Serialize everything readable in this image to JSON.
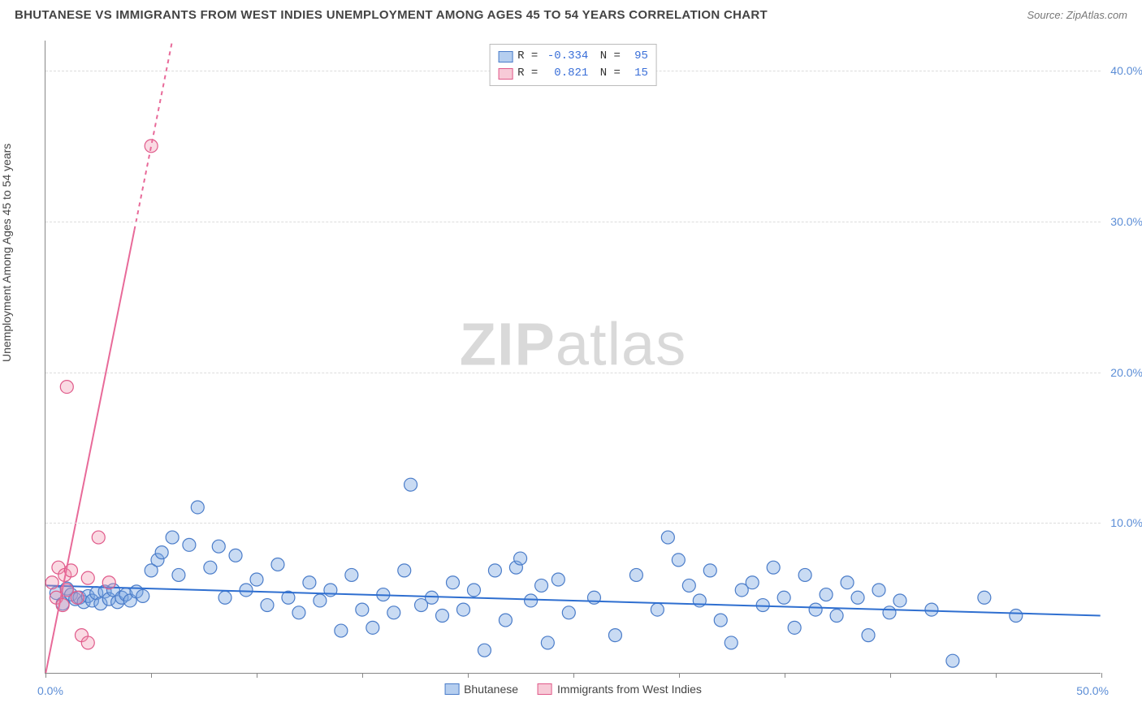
{
  "title": "BHUTANESE VS IMMIGRANTS FROM WEST INDIES UNEMPLOYMENT AMONG AGES 45 TO 54 YEARS CORRELATION CHART",
  "source": "Source: ZipAtlas.com",
  "ylabel": "Unemployment Among Ages 45 to 54 years",
  "watermark_bold": "ZIP",
  "watermark_light": "atlas",
  "xlim": [
    0,
    50
  ],
  "ylim": [
    0,
    42
  ],
  "x_tick_positions": [
    0,
    5,
    10,
    15,
    20,
    25,
    30,
    35,
    40,
    45,
    50
  ],
  "y_gridlines": [
    10,
    20,
    30,
    40
  ],
  "y_tick_labels": [
    "10.0%",
    "20.0%",
    "30.0%",
    "40.0%"
  ],
  "x_origin_label": "0.0%",
  "x_max_label": "50.0%",
  "colors": {
    "blue_fill": "rgba(120,165,225,0.40)",
    "blue_stroke": "#4a7cc9",
    "pink_fill": "rgba(240,150,175,0.35)",
    "pink_stroke": "#e05a8a",
    "blue_line": "#2f6fd0",
    "pink_line": "#e86a99",
    "grid": "#dcdcdc",
    "axis": "#888888",
    "tick_text": "#5b8dd6"
  },
  "marker_radius": 8,
  "line_width": 2,
  "series": [
    {
      "name": "Bhutanese",
      "color_key": "blue",
      "R": "-0.334",
      "N": "95",
      "trend": {
        "x1": 0,
        "y1": 5.8,
        "x2": 50,
        "y2": 3.8
      },
      "points": [
        [
          0.5,
          5.3
        ],
        [
          0.8,
          4.6
        ],
        [
          1.0,
          5.6
        ],
        [
          1.2,
          5.2
        ],
        [
          1.4,
          4.9
        ],
        [
          1.6,
          5.0
        ],
        [
          1.8,
          4.7
        ],
        [
          2.0,
          5.1
        ],
        [
          2.2,
          4.8
        ],
        [
          2.4,
          5.3
        ],
        [
          2.6,
          4.6
        ],
        [
          2.8,
          5.4
        ],
        [
          3.0,
          4.9
        ],
        [
          3.2,
          5.5
        ],
        [
          3.4,
          4.7
        ],
        [
          3.6,
          5.0
        ],
        [
          3.8,
          5.2
        ],
        [
          4.0,
          4.8
        ],
        [
          4.3,
          5.4
        ],
        [
          4.6,
          5.1
        ],
        [
          5.0,
          6.8
        ],
        [
          5.3,
          7.5
        ],
        [
          5.5,
          8.0
        ],
        [
          6.0,
          9.0
        ],
        [
          6.3,
          6.5
        ],
        [
          6.8,
          8.5
        ],
        [
          7.2,
          11.0
        ],
        [
          7.8,
          7.0
        ],
        [
          8.2,
          8.4
        ],
        [
          8.5,
          5.0
        ],
        [
          9.0,
          7.8
        ],
        [
          9.5,
          5.5
        ],
        [
          10.0,
          6.2
        ],
        [
          10.5,
          4.5
        ],
        [
          11.0,
          7.2
        ],
        [
          11.5,
          5.0
        ],
        [
          12.0,
          4.0
        ],
        [
          12.5,
          6.0
        ],
        [
          13.0,
          4.8
        ],
        [
          13.5,
          5.5
        ],
        [
          14.0,
          2.8
        ],
        [
          14.5,
          6.5
        ],
        [
          15.0,
          4.2
        ],
        [
          15.5,
          3.0
        ],
        [
          16.0,
          5.2
        ],
        [
          16.5,
          4.0
        ],
        [
          17.0,
          6.8
        ],
        [
          17.3,
          12.5
        ],
        [
          17.8,
          4.5
        ],
        [
          18.3,
          5.0
        ],
        [
          18.8,
          3.8
        ],
        [
          19.3,
          6.0
        ],
        [
          19.8,
          4.2
        ],
        [
          20.3,
          5.5
        ],
        [
          20.8,
          1.5
        ],
        [
          21.3,
          6.8
        ],
        [
          21.8,
          3.5
        ],
        [
          22.3,
          7.0
        ],
        [
          22.5,
          7.6
        ],
        [
          23.0,
          4.8
        ],
        [
          23.5,
          5.8
        ],
        [
          23.8,
          2.0
        ],
        [
          24.3,
          6.2
        ],
        [
          24.8,
          4.0
        ],
        [
          26.0,
          5.0
        ],
        [
          27.0,
          2.5
        ],
        [
          28.0,
          6.5
        ],
        [
          29.0,
          4.2
        ],
        [
          29.5,
          9.0
        ],
        [
          30.0,
          7.5
        ],
        [
          30.5,
          5.8
        ],
        [
          31.0,
          4.8
        ],
        [
          31.5,
          6.8
        ],
        [
          32.0,
          3.5
        ],
        [
          32.5,
          2.0
        ],
        [
          33.0,
          5.5
        ],
        [
          33.5,
          6.0
        ],
        [
          34.0,
          4.5
        ],
        [
          34.5,
          7.0
        ],
        [
          35.0,
          5.0
        ],
        [
          35.5,
          3.0
        ],
        [
          36.0,
          6.5
        ],
        [
          36.5,
          4.2
        ],
        [
          37.0,
          5.2
        ],
        [
          37.5,
          3.8
        ],
        [
          38.0,
          6.0
        ],
        [
          38.5,
          5.0
        ],
        [
          39.0,
          2.5
        ],
        [
          39.5,
          5.5
        ],
        [
          40.0,
          4.0
        ],
        [
          40.5,
          4.8
        ],
        [
          42.0,
          4.2
        ],
        [
          43.0,
          0.8
        ],
        [
          44.5,
          5.0
        ],
        [
          46.0,
          3.8
        ]
      ]
    },
    {
      "name": "Immigrants from West Indies",
      "color_key": "pink",
      "R": "0.821",
      "N": "15",
      "trend": {
        "x1": 0,
        "y1": 0.0,
        "x2": 6.0,
        "y2": 42
      },
      "trend_dashed_from_x": 4.2,
      "points": [
        [
          0.3,
          6.0
        ],
        [
          0.5,
          5.0
        ],
        [
          0.6,
          7.0
        ],
        [
          0.8,
          4.5
        ],
        [
          0.9,
          6.5
        ],
        [
          1.0,
          5.5
        ],
        [
          1.2,
          6.8
        ],
        [
          1.0,
          19.0
        ],
        [
          1.5,
          5.0
        ],
        [
          1.7,
          2.5
        ],
        [
          2.0,
          2.0
        ],
        [
          2.0,
          6.3
        ],
        [
          2.5,
          9.0
        ],
        [
          3.0,
          6.0
        ],
        [
          5.0,
          35.0
        ]
      ]
    }
  ],
  "legend_bottom": [
    {
      "label": "Bhutanese",
      "color_key": "blue"
    },
    {
      "label": "Immigrants from West Indies",
      "color_key": "pink"
    }
  ]
}
